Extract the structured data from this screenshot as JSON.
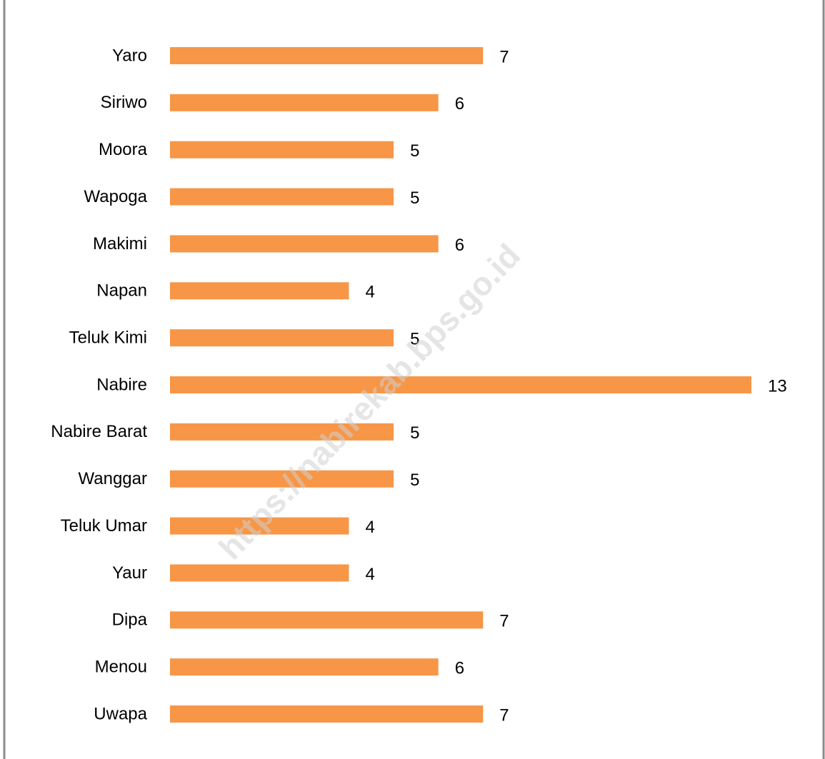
{
  "chart_data": {
    "type": "barh",
    "categories": [
      "Yaro",
      "Siriwo",
      "Moora",
      "Wapoga",
      "Makimi",
      "Napan",
      "Teluk Kimi",
      "Nabire",
      "Nabire Barat",
      "Wanggar",
      "Teluk Umar",
      "Yaur",
      "Dipa",
      "Menou",
      "Uwapa"
    ],
    "values": [
      7,
      6,
      5,
      5,
      6,
      4,
      5,
      13,
      5,
      5,
      4,
      4,
      7,
      6,
      7
    ],
    "color": "#f79646",
    "watermark": "https://nabirekab.bps.go.id"
  }
}
